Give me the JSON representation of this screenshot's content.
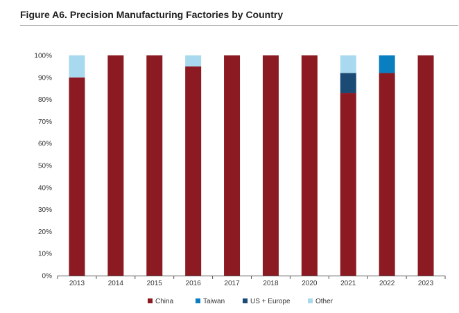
{
  "title": "Figure A6. Precision Manufacturing Factories by Country",
  "chart_data": {
    "type": "bar",
    "stacked": true,
    "categories": [
      "2013",
      "2014",
      "2015",
      "2016",
      "2017",
      "2018",
      "2020",
      "2021",
      "2022",
      "2023"
    ],
    "series": [
      {
        "name": "China",
        "color": "#8b1a22",
        "values": [
          90,
          100,
          100,
          95,
          100,
          100,
          100,
          83,
          92,
          100
        ]
      },
      {
        "name": "Taiwan",
        "color": "#0a7fbf",
        "values": [
          0,
          0,
          0,
          0,
          0,
          0,
          0,
          0,
          8,
          0
        ]
      },
      {
        "name": "US + Europe",
        "color": "#1b4a75",
        "values": [
          0,
          0,
          0,
          0,
          0,
          0,
          0,
          9,
          0,
          0
        ]
      },
      {
        "name": "Other",
        "color": "#a9d9ee",
        "values": [
          10,
          0,
          0,
          5,
          0,
          0,
          0,
          8,
          0,
          0
        ]
      }
    ],
    "ylim": [
      0,
      100
    ],
    "yticks": [
      "0%",
      "10%",
      "20%",
      "30%",
      "40%",
      "50%",
      "60%",
      "70%",
      "80%",
      "90%",
      "100%"
    ],
    "xlabel": "",
    "ylabel": "",
    "legend_position": "bottom-center",
    "grid": false
  }
}
